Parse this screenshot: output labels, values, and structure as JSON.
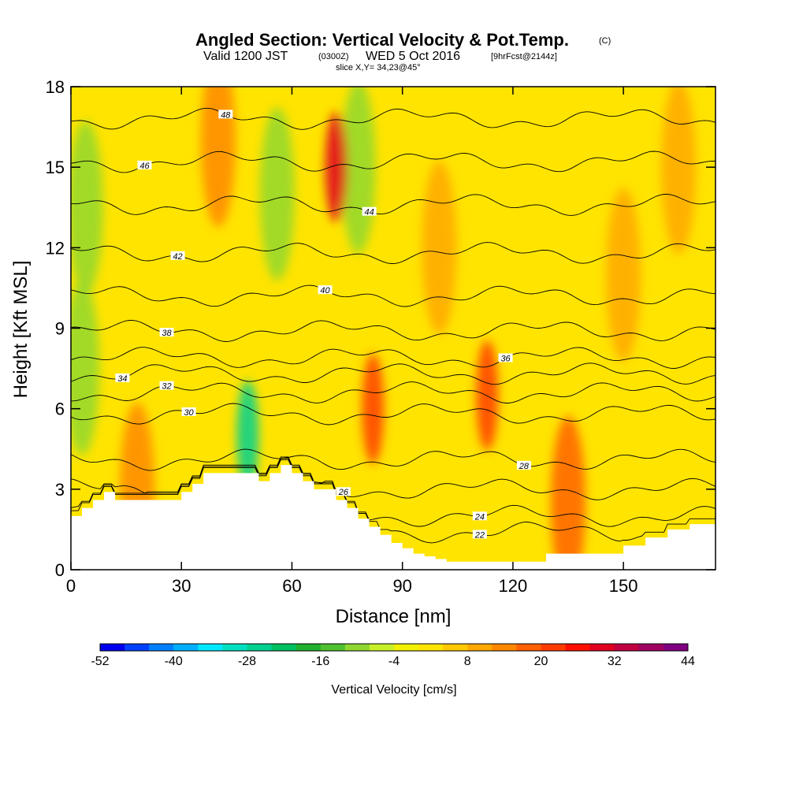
{
  "chart_data": {
    "type": "heatmap",
    "title": "Angled Section: Vertical Velocity & Pot.Temp.",
    "title_mark": "(C)",
    "subtitle_parts": [
      "Valid 1200 JST",
      "(0300Z)",
      "WED 5 Oct 2016",
      "[9hrFcst@2144z]"
    ],
    "slice_label": "slice X,Y= 34,23@45°",
    "xlabel": "Distance [nm]",
    "ylabel": "Height [Kft MSL]",
    "xlim": [
      0,
      175
    ],
    "ylim": [
      0,
      18
    ],
    "x_ticks": [
      0,
      30,
      60,
      90,
      120,
      150
    ],
    "y_ticks": [
      0,
      3,
      6,
      9,
      12,
      15,
      18
    ],
    "colorbar": {
      "label": "Vertical Velocity [cm/s]",
      "tick_labels": [
        -52,
        -40,
        -28,
        -16,
        -4,
        8,
        20,
        32,
        44
      ],
      "boundaries": [
        -52,
        -48,
        -44,
        -40,
        -36,
        -32,
        -28,
        -24,
        -20,
        -16,
        -12,
        -8,
        -4,
        0,
        4,
        8,
        12,
        16,
        20,
        24,
        28,
        32,
        36,
        40,
        44
      ],
      "colors": [
        "#0000ee",
        "#0040ff",
        "#0080ff",
        "#00b0ff",
        "#00e8ff",
        "#00e0c0",
        "#00d090",
        "#00c060",
        "#20b030",
        "#50c030",
        "#90d830",
        "#c8f028",
        "#f0f000",
        "#ffe400",
        "#ffc800",
        "#ffa800",
        "#ff8800",
        "#ff6000",
        "#ff3c00",
        "#ff1000",
        "#e00020",
        "#c00040",
        "#a00060",
        "#800080"
      ]
    },
    "velocity_features": [
      {
        "x": 4,
        "y": 13.5,
        "value": -12
      },
      {
        "x": 3,
        "y": 7.5,
        "value": -12
      },
      {
        "x": 48,
        "y": 5,
        "value": -28
      },
      {
        "x": 56,
        "y": 14,
        "value": -12
      },
      {
        "x": 78,
        "y": 15,
        "value": -12
      },
      {
        "x": 72,
        "y": 15,
        "value": 30
      },
      {
        "x": 82,
        "y": 6,
        "value": 22
      },
      {
        "x": 113,
        "y": 6.5,
        "value": 22
      },
      {
        "x": 18,
        "y": 3,
        "value": 14
      },
      {
        "x": 135,
        "y": 2.5,
        "value": 16
      },
      {
        "x": 100,
        "y": 12,
        "value": 10
      },
      {
        "x": 150,
        "y": 11,
        "value": 10
      },
      {
        "x": 165,
        "y": 15,
        "value": 10
      },
      {
        "x": 40,
        "y": 16,
        "value": 12
      }
    ],
    "terrain": {
      "x": [
        0,
        3,
        6,
        9,
        12,
        15,
        18,
        21,
        24,
        27,
        30,
        33,
        36,
        39,
        42,
        45,
        48,
        51,
        54,
        57,
        60,
        63,
        66,
        69,
        72,
        75,
        78,
        81,
        84,
        87,
        90,
        93,
        96,
        99,
        102,
        105,
        108,
        111,
        114,
        117,
        120,
        123,
        126,
        129,
        132,
        135,
        138,
        141,
        144,
        147,
        150,
        153,
        156,
        159,
        162,
        165,
        168,
        171,
        175
      ],
      "height": [
        2.0,
        2.3,
        2.6,
        2.9,
        2.6,
        2.6,
        2.6,
        2.6,
        2.6,
        2.6,
        2.9,
        3.2,
        3.6,
        3.6,
        3.6,
        3.6,
        3.6,
        3.3,
        3.6,
        3.9,
        3.6,
        3.3,
        3.0,
        3.0,
        2.6,
        2.3,
        1.9,
        1.6,
        1.3,
        1.0,
        0.8,
        0.6,
        0.5,
        0.4,
        0.3,
        0.3,
        0.3,
        0.3,
        0.3,
        0.3,
        0.3,
        0.3,
        0.3,
        0.6,
        0.6,
        0.6,
        0.6,
        0.6,
        0.6,
        0.6,
        0.9,
        0.9,
        1.2,
        1.2,
        1.5,
        1.5,
        1.7,
        1.7,
        1.7
      ]
    },
    "isentropes": [
      {
        "theta": 22,
        "base": 1.4,
        "label_x": 111
      },
      {
        "theta": 24,
        "base": 2.0,
        "label_x": 111
      },
      {
        "theta": 26,
        "base": 3.0,
        "label_x": 74
      },
      {
        "theta": 28,
        "base": 4.1,
        "label_x": 123
      },
      {
        "theta": 30,
        "base": 5.8,
        "label_x": 32
      },
      {
        "theta": 32,
        "base": 6.6,
        "label_x": 26
      },
      {
        "theta": 34,
        "base": 7.3,
        "label_x": 14
      },
      {
        "theta": 36,
        "base": 7.9,
        "label_x": 118
      },
      {
        "theta": 38,
        "base": 8.9,
        "label_x": 26
      },
      {
        "theta": 40,
        "base": 10.2,
        "label_x": 69
      },
      {
        "theta": 42,
        "base": 11.8,
        "label_x": 29
      },
      {
        "theta": 44,
        "base": 13.6,
        "label_x": 81
      },
      {
        "theta": 46,
        "base": 15.2,
        "label_x": 20
      },
      {
        "theta": 48,
        "base": 16.8,
        "label_x": 42
      }
    ]
  }
}
